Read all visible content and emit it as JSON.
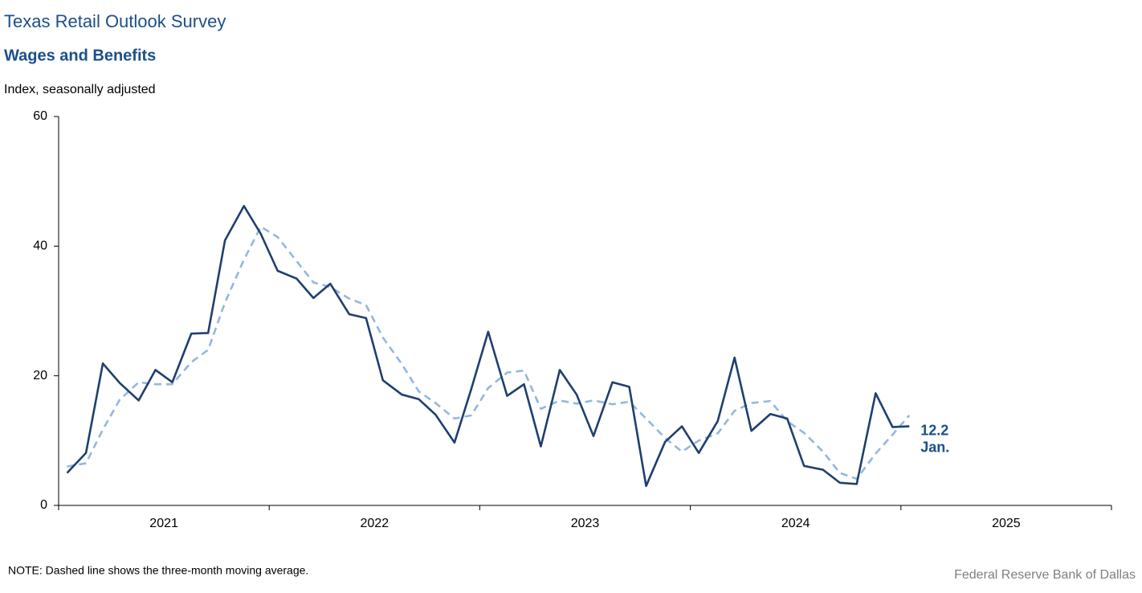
{
  "chart_data": {
    "type": "line",
    "title": "Texas Retail Outlook Survey",
    "subtitle": "Wages and Benefits",
    "y_axis_label": "Index, seasonally adjusted",
    "note": "NOTE: Dashed line shows the three-month  moving average.",
    "source": "Federal Reserve Bank of Dallas",
    "annotation": {
      "value_label": "12.2",
      "date_label": "Jan."
    },
    "x": [
      2021.04,
      2021.13,
      2021.21,
      2021.29,
      2021.38,
      2021.46,
      2021.54,
      2021.63,
      2021.71,
      2021.79,
      2021.88,
      2021.96,
      2022.04,
      2022.13,
      2022.21,
      2022.29,
      2022.38,
      2022.46,
      2022.54,
      2022.63,
      2022.71,
      2022.79,
      2022.88,
      2022.96,
      2023.04,
      2023.13,
      2023.21,
      2023.29,
      2023.38,
      2023.46,
      2023.54,
      2023.63,
      2023.71,
      2023.79,
      2023.88,
      2023.96,
      2024.04,
      2024.13,
      2024.21,
      2024.29,
      2024.38,
      2024.46,
      2024.54,
      2024.63,
      2024.71,
      2024.79,
      2024.88,
      2024.96,
      2025.04
    ],
    "series": [
      {
        "name": "Index",
        "color": "#1f3f6e",
        "dashed": false,
        "values": [
          5.0,
          8.1,
          21.9,
          18.9,
          16.2,
          20.9,
          19.0,
          26.5,
          26.6,
          40.9,
          46.2,
          41.9,
          36.2,
          35.0,
          32.0,
          34.2,
          29.5,
          28.9,
          19.3,
          17.1,
          16.4,
          14.0,
          9.7,
          18.0,
          26.8,
          16.9,
          18.7,
          9.1,
          20.9,
          17.1,
          10.7,
          19.0,
          18.3,
          3.0,
          9.8,
          12.2,
          8.1,
          13.0,
          22.8,
          11.5,
          14.1,
          13.4,
          6.1,
          5.5,
          3.5,
          3.3,
          17.3,
          12.1,
          12.2
        ]
      },
      {
        "name": "Three-month moving average",
        "color": "#93b7de",
        "dashed": true,
        "values": [
          6.0,
          6.5,
          11.7,
          16.3,
          19.0,
          18.7,
          18.7,
          22.1,
          24.0,
          31.3,
          37.9,
          43.0,
          41.4,
          37.7,
          34.4,
          33.7,
          31.9,
          30.9,
          25.9,
          21.8,
          17.6,
          15.8,
          13.4,
          13.9,
          18.1,
          20.5,
          20.8,
          14.9,
          16.2,
          15.7,
          16.2,
          15.6,
          16.0,
          13.4,
          10.4,
          8.3,
          10.0,
          11.1,
          14.6,
          15.8,
          16.1,
          13.0,
          11.2,
          8.3,
          5.0,
          4.1,
          8.0,
          10.9,
          13.9
        ]
      }
    ],
    "xlim": [
      2021,
      2026
    ],
    "xticks": [
      {
        "value": 2021.5,
        "label": "2021"
      },
      {
        "value": 2022.5,
        "label": "2022"
      },
      {
        "value": 2023.5,
        "label": "2023"
      },
      {
        "value": 2024.5,
        "label": "2024"
      },
      {
        "value": 2025.5,
        "label": "2025"
      }
    ],
    "xtick_marks": [
      2021,
      2022,
      2023,
      2024,
      2025,
      2026
    ],
    "ylim": [
      0,
      60
    ],
    "yticks": [
      0,
      20,
      40,
      60
    ],
    "grid": false,
    "legend": false
  }
}
